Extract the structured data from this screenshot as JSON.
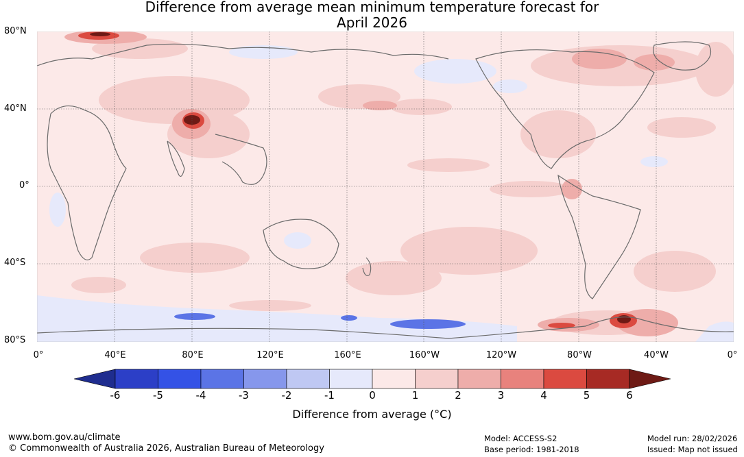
{
  "title": {
    "line1": "Difference from average mean minimum temperature forecast for",
    "line2": "April 2026"
  },
  "map": {
    "latitude_labels": [
      "80°N",
      "40°N",
      "0°",
      "40°S",
      "80°S"
    ],
    "longitude_labels": [
      "0°",
      "40°E",
      "80°E",
      "120°E",
      "160°E",
      "160°W",
      "120°W",
      "80°W",
      "40°W",
      "0°"
    ],
    "icon": "world-map-icon"
  },
  "colorbar": {
    "ticks": [
      "-6",
      "-5",
      "-4",
      "-3",
      "-2",
      "-1",
      "0",
      "1",
      "2",
      "3",
      "4",
      "5",
      "6"
    ],
    "colors": [
      "#1f2d8f",
      "#2c3fc7",
      "#3452e6",
      "#5b74e6",
      "#8697ec",
      "#bfc8f3",
      "#e6e9fb",
      "#fce9e8",
      "#f5cfcd",
      "#eeadaa",
      "#e8827d",
      "#db4a40",
      "#a72a24",
      "#6e1a15"
    ],
    "label": "Difference from average (°C)"
  },
  "footer": {
    "website": "www.bom.gov.au/climate",
    "copyright": "© Commonwealth of Australia 2026, Australian Bureau of Meteorology",
    "model": "Model: ACCESS-S2",
    "base_period": "Base period: 1981-2018",
    "model_run": "Model run: 28/02/2026",
    "issued": "Issued: Map not issued"
  }
}
